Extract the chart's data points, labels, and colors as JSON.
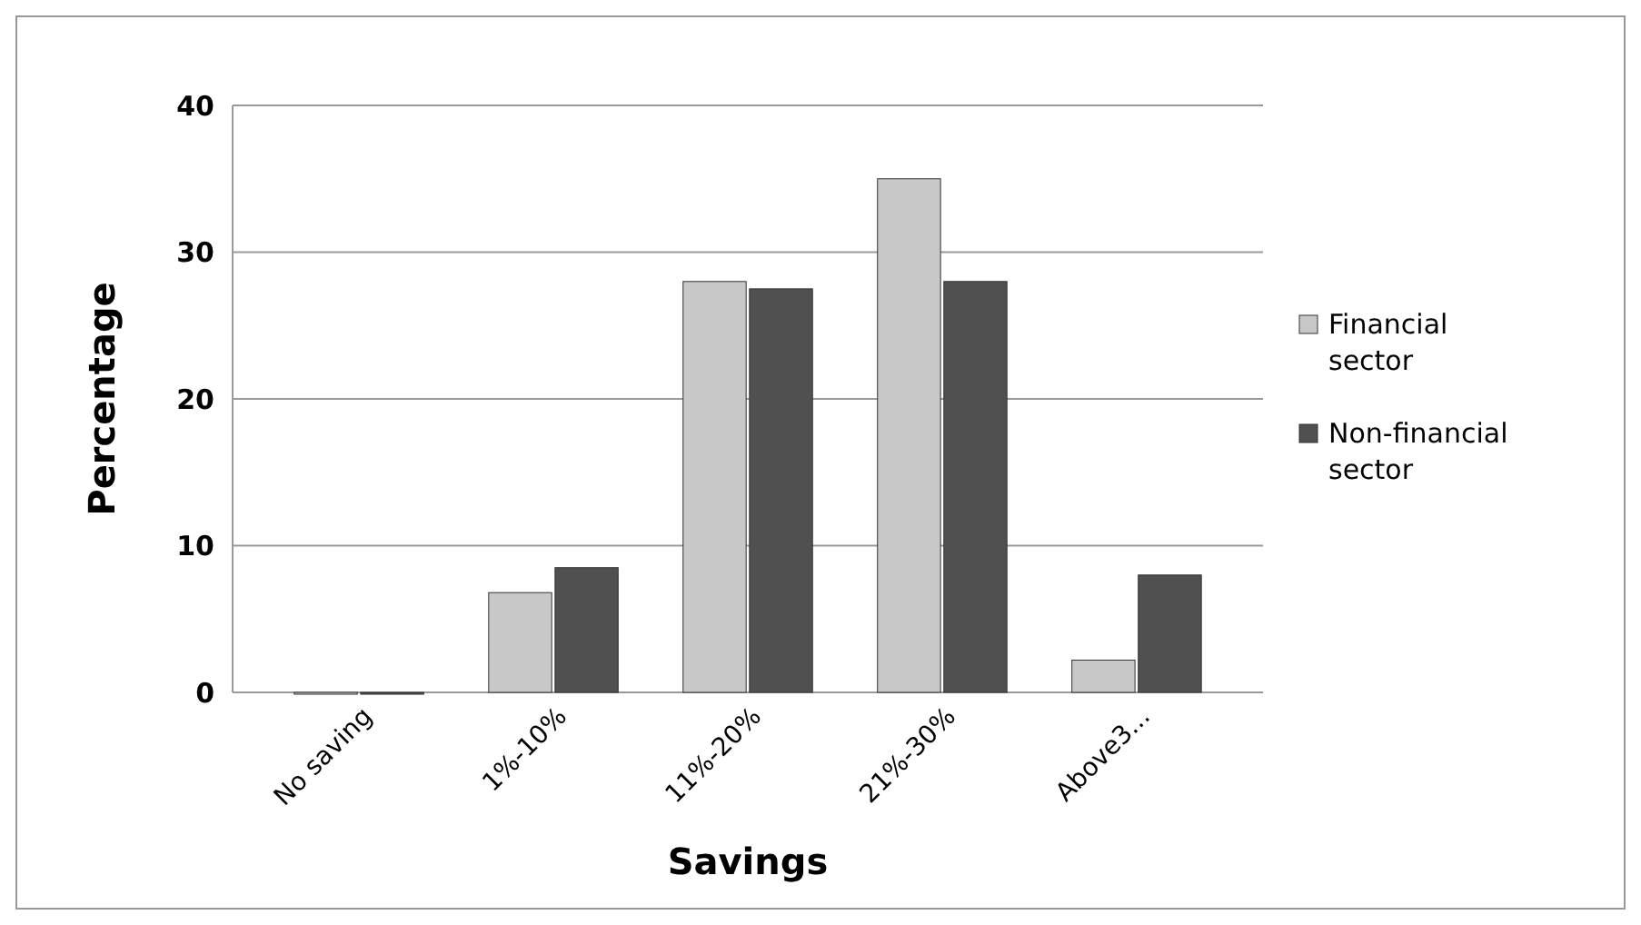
{
  "chart_data": {
    "type": "bar",
    "xlabel": "Savings",
    "ylabel": "Percentage",
    "categories": [
      "No saving",
      "1%-10%",
      "11%-20%",
      "21%-30%",
      "Above3..."
    ],
    "series": [
      {
        "name": "Financial sector",
        "color": "#c8c8c8",
        "values": [
          0,
          6.8,
          28,
          35,
          2.2
        ]
      },
      {
        "name": "Non-financial sector",
        "color": "#505050",
        "values": [
          0,
          8.5,
          27.5,
          28,
          8
        ]
      }
    ],
    "ylim": [
      0,
      40
    ],
    "yticks": [
      0,
      10,
      20,
      30,
      40
    ],
    "grid": "y",
    "legend": "right"
  }
}
